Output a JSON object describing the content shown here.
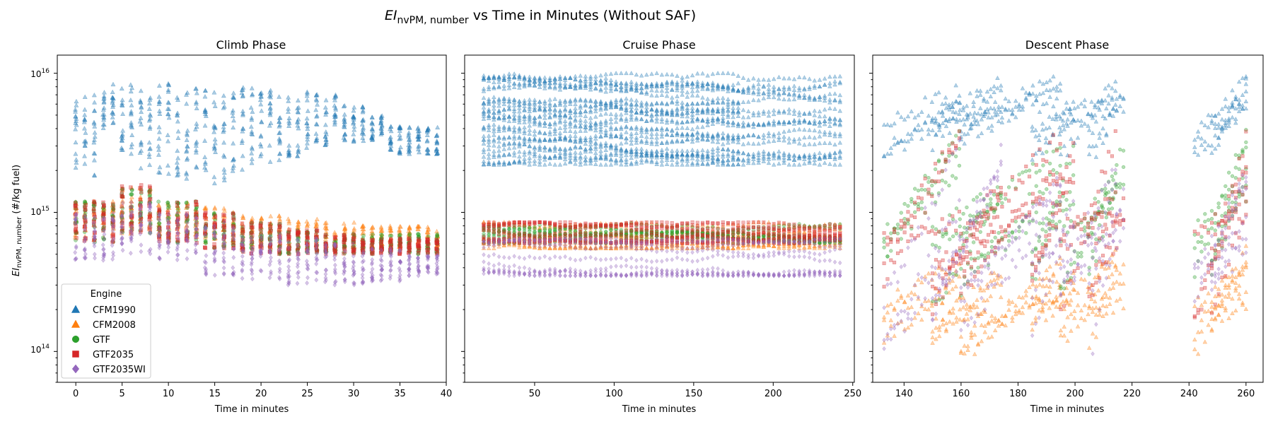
{
  "figure": {
    "title_main": "EI",
    "title_sub": "nvPM, number",
    "title_rest": " vs Time in Minutes (Without SAF)"
  },
  "colors": {
    "CFM1990": "#1f77b4",
    "CFM2008": "#ff7f0e",
    "GTF": "#2ca02c",
    "GTF2035": "#d62728",
    "GTF2035WI": "#9467bd"
  },
  "legend": {
    "title": "Engine",
    "placement": "lower-left",
    "entries": [
      {
        "name": "CFM1990",
        "marker": "triangle"
      },
      {
        "name": "CFM2008",
        "marker": "triangle"
      },
      {
        "name": "GTF",
        "marker": "circle"
      },
      {
        "name": "GTF2035",
        "marker": "square"
      },
      {
        "name": "GTF2035WI",
        "marker": "diamond"
      }
    ]
  },
  "yaxis": {
    "label_main": "EI",
    "label_sub": "nvPM, number",
    "label_rest": " (#/kg fuel)",
    "scale": "log",
    "ticks": [
      {
        "base": "10",
        "exp": "14"
      },
      {
        "base": "10",
        "exp": "15"
      },
      {
        "base": "10",
        "exp": "16"
      }
    ]
  },
  "chart_data": [
    {
      "type": "scatter",
      "title": "Climb Phase",
      "xlabel": "Time in minutes",
      "xlim": [
        -2,
        40
      ],
      "xticks": [
        0,
        5,
        10,
        15,
        20,
        25,
        30,
        35,
        40
      ],
      "ylim": [
        60000000000000.0,
        1.35e+16
      ],
      "yscale": "log",
      "grid": false,
      "series": [
        {
          "name": "CFM1990",
          "band_low": [
            1800000000000000.0,
            4000000000000000.0,
            2500000000000000.0,
            2000000000000000.0,
            1800000000000000.0,
            1700000000000000.0,
            1600000000000000.0,
            1500000000000000.0,
            2000000000000000.0,
            2300000000000000.0,
            2500000000000000.0,
            2700000000000000.0,
            3000000000000000.0,
            3200000000000000.0,
            3300000000000000.0,
            3400000000000000.0,
            3500000000000000.0,
            3500000000000000.0
          ],
          "band_high": [
            7000000000000000.0,
            8500000000000000.0,
            8500000000000000.0,
            8500000000000000.0,
            8500000000000000.0,
            8200000000000000.0,
            8000000000000000.0,
            8000000000000000.0,
            8000000000000000.0,
            7800000000000000.0,
            7500000000000000.0,
            7500000000000000.0,
            7000000000000000.0,
            6000000000000000.0,
            5000000000000000.0,
            4500000000000000.0,
            4200000000000000.0,
            4000000000000000.0
          ]
        },
        {
          "name": "CFM2008",
          "band_low": [
            600000000000000.0,
            700000000000000.0,
            650000000000000.0,
            600000000000000.0,
            550000000000000.0,
            550000000000000.0,
            550000000000000.0,
            550000000000000.0,
            550000000000000.0
          ],
          "band_high": [
            1200000000000000.0,
            1500000000000000.0,
            1200000000000000.0,
            1100000000000000.0,
            950000000000000.0,
            900000000000000.0,
            850000000000000.0,
            800000000000000.0,
            800000000000000.0
          ]
        },
        {
          "name": "GTF",
          "band_low": [
            600000000000000.0,
            700000000000000.0,
            600000000000000.0,
            550000000000000.0,
            500000000000000.0,
            500000000000000.0,
            500000000000000.0,
            500000000000000.0,
            500000000000000.0
          ],
          "band_high": [
            1200000000000000.0,
            1500000000000000.0,
            1200000000000000.0,
            1000000000000000.0,
            850000000000000.0,
            750000000000000.0,
            700000000000000.0,
            700000000000000.0,
            700000000000000.0
          ]
        },
        {
          "name": "GTF2035",
          "band_low": [
            600000000000000.0,
            700000000000000.0,
            600000000000000.0,
            550000000000000.0,
            500000000000000.0,
            500000000000000.0,
            500000000000000.0,
            500000000000000.0,
            500000000000000.0
          ],
          "band_high": [
            1200000000000000.0,
            1600000000000000.0,
            1200000000000000.0,
            1000000000000000.0,
            850000000000000.0,
            750000000000000.0,
            700000000000000.0,
            650000000000000.0,
            650000000000000.0
          ]
        },
        {
          "name": "GTF2035WI",
          "band_low": [
            450000000000000.0,
            500000000000000.0,
            450000000000000.0,
            350000000000000.0,
            330000000000000.0,
            300000000000000.0,
            300000000000000.0,
            320000000000000.0,
            350000000000000.0
          ],
          "band_high": [
            1000000000000000.0,
            1200000000000000.0,
            1000000000000000.0,
            850000000000000.0,
            700000000000000.0,
            650000000000000.0,
            600000000000000.0,
            550000000000000.0,
            500000000000000.0
          ]
        }
      ]
    },
    {
      "type": "scatter",
      "title": "Cruise Phase",
      "xlabel": "Time in minutes",
      "xlim": [
        6,
        251
      ],
      "xticks": [
        50,
        100,
        150,
        200,
        250
      ],
      "ylim": [
        60000000000000.0,
        1.35e+16
      ],
      "yscale": "log",
      "grid": false,
      "series": [
        {
          "name": "CFM1990",
          "range": [
            2200000000000000.0,
            1e+16
          ],
          "x_range": [
            18,
            243
          ]
        },
        {
          "name": "CFM2008",
          "range": [
            550000000000000.0,
            850000000000000.0
          ],
          "x_range": [
            18,
            243
          ]
        },
        {
          "name": "GTF",
          "range": [
            600000000000000.0,
            850000000000000.0
          ],
          "x_range": [
            18,
            243
          ]
        },
        {
          "name": "GTF2035",
          "range": [
            600000000000000.0,
            850000000000000.0
          ],
          "x_range": [
            18,
            243
          ]
        },
        {
          "name": "GTF2035WI",
          "range": [
            350000000000000.0,
            650000000000000.0
          ],
          "x_range": [
            18,
            243
          ]
        }
      ]
    },
    {
      "type": "scatter",
      "title": "Descent Phase",
      "xlabel": "Time in minutes",
      "xlim": [
        129,
        266
      ],
      "xticks": [
        140,
        160,
        180,
        200,
        220,
        240,
        260
      ],
      "ylim": [
        60000000000000.0,
        1.35e+16
      ],
      "yscale": "log",
      "grid": false,
      "series": [
        {
          "name": "CFM1990",
          "range": [
            2300000000000000.0,
            1e+16
          ],
          "x_range": [
            133,
            260
          ]
        },
        {
          "name": "CFM2008",
          "range": [
            90000000000000.0,
            600000000000000.0
          ],
          "x_range": [
            133,
            260
          ]
        },
        {
          "name": "GTF",
          "range": [
            200000000000000.0,
            4000000000000000.0
          ],
          "x_range": [
            133,
            260
          ]
        },
        {
          "name": "GTF2035",
          "range": [
            150000000000000.0,
            4000000000000000.0
          ],
          "x_range": [
            133,
            260
          ]
        },
        {
          "name": "GTF2035WI",
          "range": [
            80000000000000.0,
            3500000000000000.0
          ],
          "x_range": [
            133,
            260
          ]
        }
      ]
    }
  ]
}
